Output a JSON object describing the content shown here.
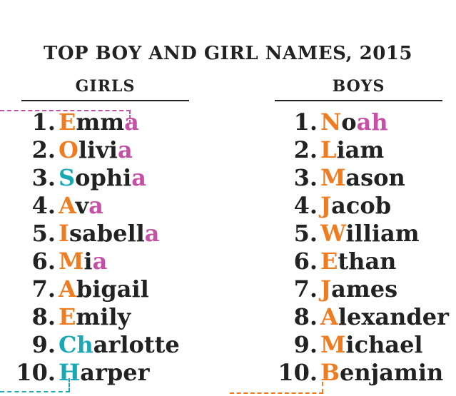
{
  "title": "TOP BOY AND GIRL NAMES, 2015",
  "colors": {
    "orange": "#f07c21",
    "pink": "#c550a5",
    "teal": "#1aa8b6",
    "dark": "#222222"
  },
  "girls": {
    "heading": "GIRLS",
    "items": [
      {
        "rank": "1.",
        "segments": [
          {
            "text": "E",
            "color": "orange"
          },
          {
            "text": "mm",
            "color": "dark"
          },
          {
            "text": "a",
            "color": "pink"
          }
        ]
      },
      {
        "rank": "2.",
        "segments": [
          {
            "text": "O",
            "color": "orange"
          },
          {
            "text": "livi",
            "color": "dark"
          },
          {
            "text": "a",
            "color": "pink"
          }
        ]
      },
      {
        "rank": "3.",
        "segments": [
          {
            "text": "S",
            "color": "teal"
          },
          {
            "text": "ophi",
            "color": "dark"
          },
          {
            "text": "a",
            "color": "pink"
          }
        ]
      },
      {
        "rank": "4.",
        "segments": [
          {
            "text": "A",
            "color": "orange"
          },
          {
            "text": "v",
            "color": "dark"
          },
          {
            "text": "a",
            "color": "pink"
          }
        ]
      },
      {
        "rank": "5.",
        "segments": [
          {
            "text": "I",
            "color": "orange"
          },
          {
            "text": "sabell",
            "color": "dark"
          },
          {
            "text": "a",
            "color": "pink"
          }
        ]
      },
      {
        "rank": "6.",
        "segments": [
          {
            "text": "M",
            "color": "orange"
          },
          {
            "text": "i",
            "color": "dark"
          },
          {
            "text": "a",
            "color": "pink"
          }
        ]
      },
      {
        "rank": "7.",
        "segments": [
          {
            "text": "A",
            "color": "orange"
          },
          {
            "text": "bigail",
            "color": "dark"
          }
        ]
      },
      {
        "rank": "8.",
        "segments": [
          {
            "text": "E",
            "color": "orange"
          },
          {
            "text": "mily",
            "color": "dark"
          }
        ]
      },
      {
        "rank": "9.",
        "segments": [
          {
            "text": "Ch",
            "color": "teal"
          },
          {
            "text": "arlotte",
            "color": "dark"
          }
        ]
      },
      {
        "rank": "10.",
        "segments": [
          {
            "text": "H",
            "color": "teal"
          },
          {
            "text": "arper",
            "color": "dark"
          }
        ]
      }
    ]
  },
  "boys": {
    "heading": "BOYS",
    "items": [
      {
        "rank": "1.",
        "segments": [
          {
            "text": "N",
            "color": "orange"
          },
          {
            "text": "o",
            "color": "dark"
          },
          {
            "text": "ah",
            "color": "pink"
          }
        ]
      },
      {
        "rank": "2.",
        "segments": [
          {
            "text": "L",
            "color": "orange"
          },
          {
            "text": "iam",
            "color": "dark"
          }
        ]
      },
      {
        "rank": "3.",
        "segments": [
          {
            "text": "M",
            "color": "orange"
          },
          {
            "text": "ason",
            "color": "dark"
          }
        ]
      },
      {
        "rank": "4.",
        "segments": [
          {
            "text": "J",
            "color": "orange"
          },
          {
            "text": "acob",
            "color": "dark"
          }
        ]
      },
      {
        "rank": "5.",
        "segments": [
          {
            "text": "W",
            "color": "orange"
          },
          {
            "text": "illiam",
            "color": "dark"
          }
        ]
      },
      {
        "rank": "6.",
        "segments": [
          {
            "text": "E",
            "color": "orange"
          },
          {
            "text": "than",
            "color": "dark"
          }
        ]
      },
      {
        "rank": "7.",
        "segments": [
          {
            "text": "J",
            "color": "orange"
          },
          {
            "text": "ames",
            "color": "dark"
          }
        ]
      },
      {
        "rank": "8.",
        "segments": [
          {
            "text": "A",
            "color": "orange"
          },
          {
            "text": "lexander",
            "color": "dark"
          }
        ]
      },
      {
        "rank": "9.",
        "segments": [
          {
            "text": "M",
            "color": "orange"
          },
          {
            "text": "ichael",
            "color": "dark"
          }
        ]
      },
      {
        "rank": "10.",
        "segments": [
          {
            "text": "B",
            "color": "orange"
          },
          {
            "text": "enjamin",
            "color": "dark"
          }
        ]
      }
    ]
  }
}
